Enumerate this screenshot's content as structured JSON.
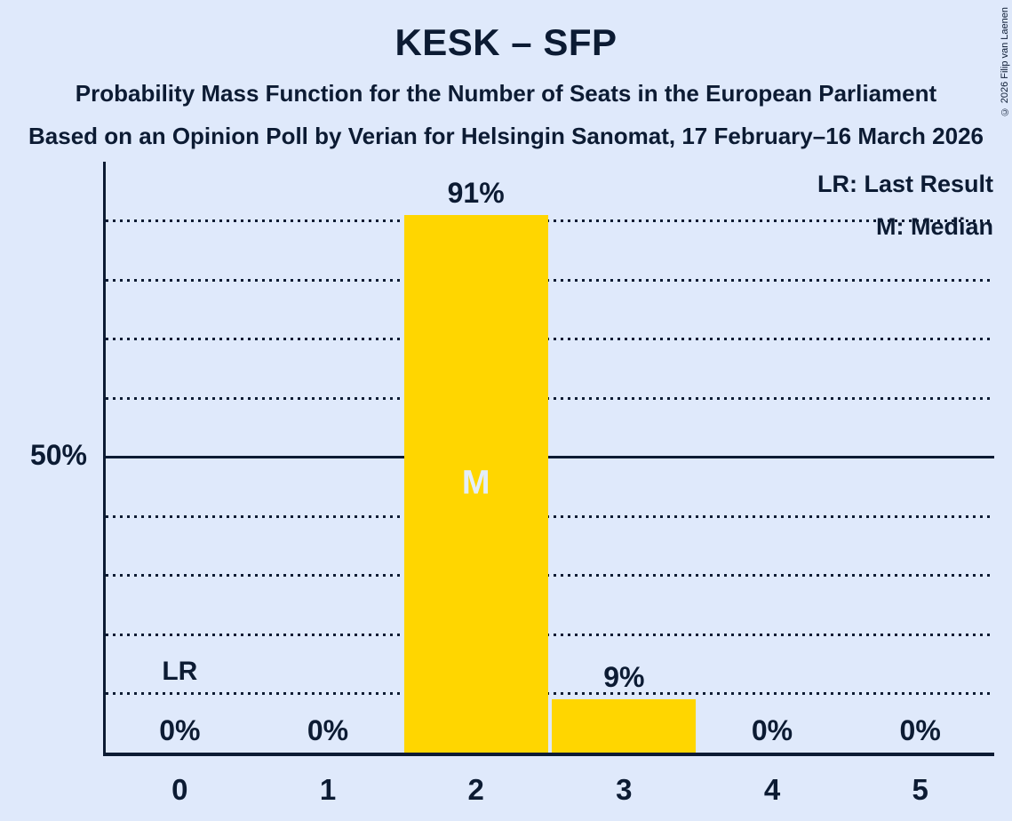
{
  "page": {
    "background_color": "#DFE9FB",
    "text_color": "#0C1B33"
  },
  "header": {
    "title": "KESK – SFP",
    "subtitle_line1": "Probability Mass Function for the Number of Seats in the European Parliament",
    "subtitle_line2": "Based on an Opinion Poll by Verian for Helsingin Sanomat, 17 February–16 March 2026"
  },
  "legend": {
    "lr": "LR: Last Result",
    "m": "M: Median"
  },
  "copyright": "© 2026 Filip van Laenen",
  "chart_data": {
    "type": "bar",
    "title": "KESK – SFP",
    "categories": [
      "0",
      "1",
      "2",
      "3",
      "4",
      "5"
    ],
    "values": [
      0,
      0,
      91,
      9,
      0,
      0
    ],
    "value_labels": [
      "0%",
      "0%",
      "91%",
      "9%",
      "0%",
      "0%"
    ],
    "ylim": [
      0,
      100
    ],
    "ytick_labels": [
      {
        "value": 50,
        "label": "50%"
      }
    ],
    "gridlines_pct": [
      10,
      20,
      30,
      40,
      50,
      60,
      70,
      80,
      90
    ],
    "solid_gridline_pct": 50,
    "grid_on": true,
    "bar_color": "#FFD600",
    "median": {
      "category": "2",
      "label": "M",
      "text_color": "#E4EEFB"
    },
    "last_result": {
      "category": "0",
      "label": "LR"
    },
    "legend_position": "top-right"
  }
}
